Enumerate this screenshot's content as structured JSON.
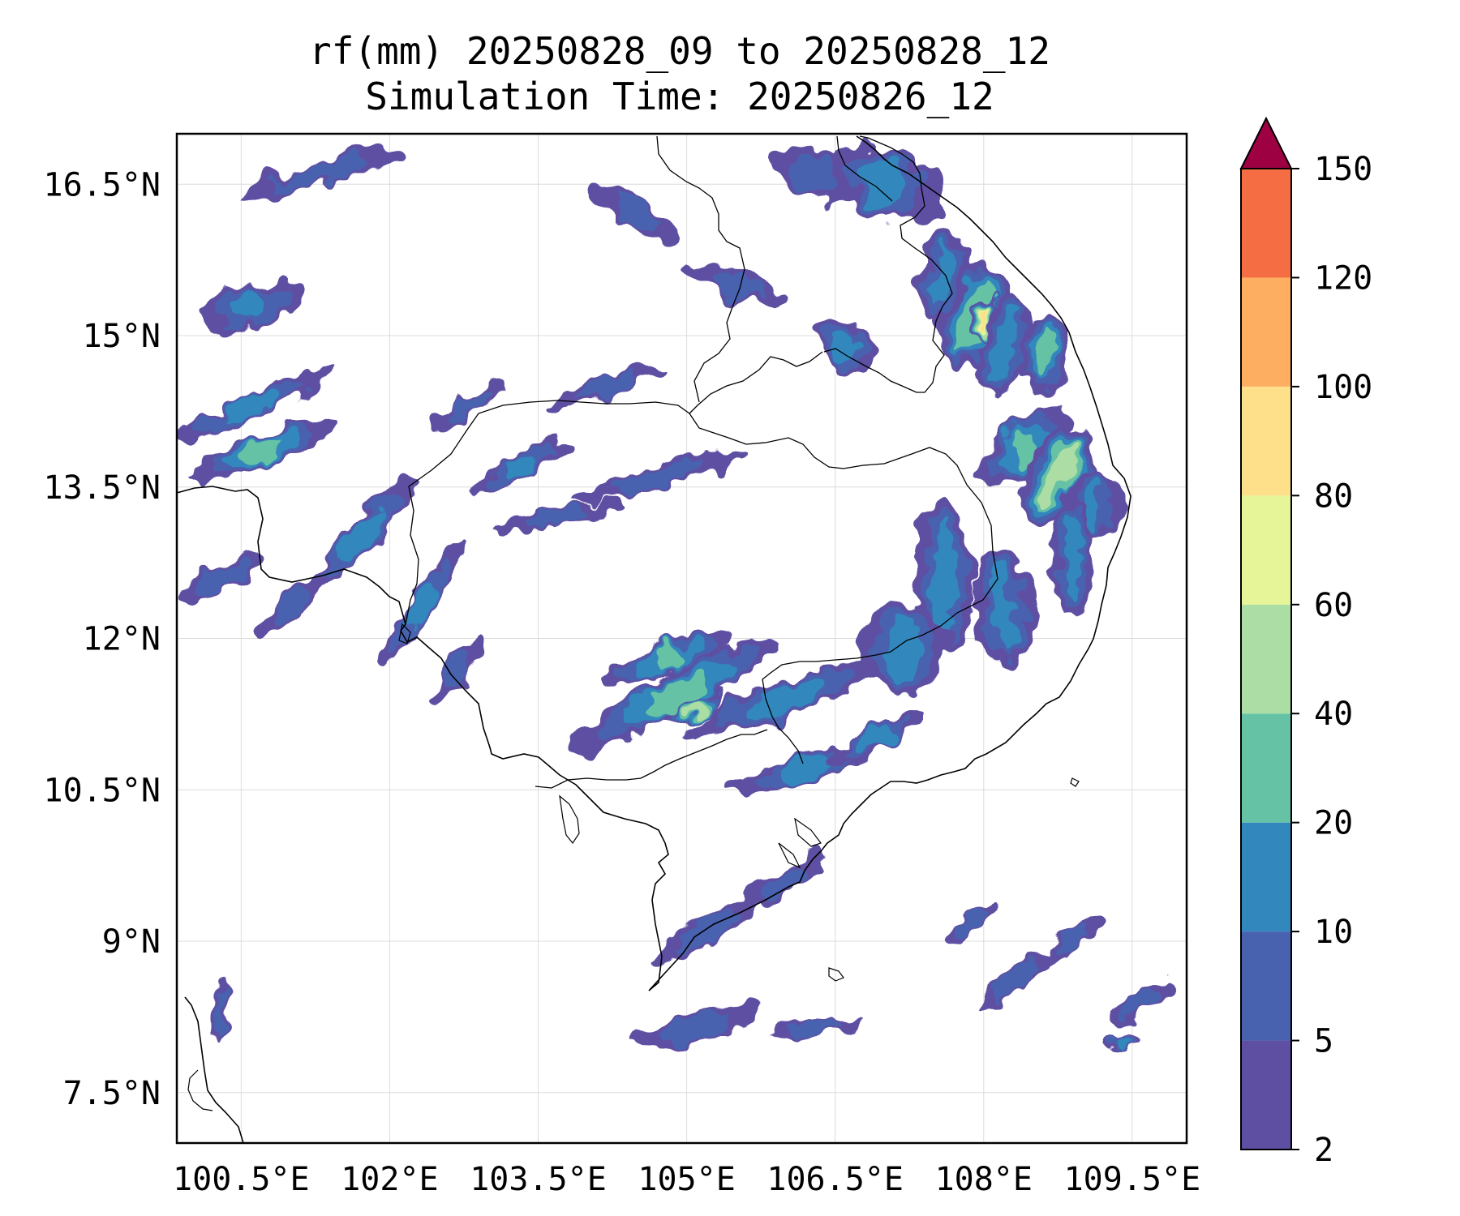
{
  "title_line1": "rf(mm) 20250828_09 to 20250828_12",
  "title_line2": "Simulation Time: 20250826_12",
  "chart_data": {
    "type": "heatmap",
    "variable": "rf(mm)",
    "period_start": "20250828_09",
    "period_end": "20250828_12",
    "simulation_time": "20250826_12",
    "lon_range": [
      99.85,
      110.05
    ],
    "lat_range": [
      7.0,
      17.0
    ],
    "grid": true,
    "x_ticks": [
      {
        "value": 100.5,
        "label": "100.5°E"
      },
      {
        "value": 102.0,
        "label": "102°E"
      },
      {
        "value": 103.5,
        "label": "103.5°E"
      },
      {
        "value": 105.0,
        "label": "105°E"
      },
      {
        "value": 106.5,
        "label": "106.5°E"
      },
      {
        "value": 108.0,
        "label": "108°E"
      },
      {
        "value": 109.5,
        "label": "109.5°E"
      }
    ],
    "y_ticks": [
      {
        "value": 16.5,
        "label": "16.5°N"
      },
      {
        "value": 15.0,
        "label": "15°N"
      },
      {
        "value": 13.5,
        "label": "13.5°N"
      },
      {
        "value": 12.0,
        "label": "12°N"
      },
      {
        "value": 10.5,
        "label": "10.5°N"
      },
      {
        "value": 9.0,
        "label": "9°N"
      },
      {
        "value": 7.5,
        "label": "7.5°N"
      }
    ],
    "colorbar": {
      "levels": [
        "2",
        "5",
        "10",
        "20",
        "40",
        "60",
        "80",
        "100",
        "120",
        "150"
      ],
      "colors": [
        "#5e4fa2",
        "#4862b0",
        "#3288bd",
        "#66c2a5",
        "#abdda4",
        "#e6f598",
        "#fee08b",
        "#fdae61",
        "#f46d43",
        "#d53e4f"
      ],
      "extend_color": "#9e0142",
      "extend": "max",
      "position": "right"
    },
    "rain_features": [
      {
        "lon": 100.7,
        "lat": 13.85,
        "rx": 0.75,
        "ry": 0.18,
        "rot": 20,
        "val": 28
      },
      {
        "lon": 100.6,
        "lat": 15.3,
        "rx": 0.55,
        "ry": 0.22,
        "rot": 15,
        "val": 12
      },
      {
        "lon": 100.6,
        "lat": 14.3,
        "rx": 0.9,
        "ry": 0.12,
        "rot": 25,
        "val": 14
      },
      {
        "lon": 101.7,
        "lat": 13.0,
        "rx": 0.9,
        "ry": 0.14,
        "rot": 48,
        "val": 11
      },
      {
        "lon": 102.3,
        "lat": 12.3,
        "rx": 0.75,
        "ry": 0.12,
        "rot": 55,
        "val": 14
      },
      {
        "lon": 101.0,
        "lat": 12.3,
        "rx": 0.5,
        "ry": 0.12,
        "rot": 40,
        "val": 6
      },
      {
        "lon": 102.7,
        "lat": 11.7,
        "rx": 0.4,
        "ry": 0.12,
        "rot": 60,
        "val": 9
      },
      {
        "lon": 100.3,
        "lat": 12.6,
        "rx": 0.55,
        "ry": 0.12,
        "rot": 25,
        "val": 6
      },
      {
        "lon": 104.9,
        "lat": 11.45,
        "rx": 1.2,
        "ry": 0.22,
        "rot": 28,
        "val": 26
      },
      {
        "lon": 104.8,
        "lat": 11.8,
        "rx": 0.7,
        "ry": 0.14,
        "rot": 18,
        "val": 22
      },
      {
        "lon": 105.1,
        "lat": 11.3,
        "rx": 0.35,
        "ry": 0.1,
        "rot": 25,
        "val": 48
      },
      {
        "lon": 106.0,
        "lat": 11.4,
        "rx": 1.1,
        "ry": 0.18,
        "rot": 20,
        "val": 14
      },
      {
        "lon": 106.2,
        "lat": 10.7,
        "rx": 0.8,
        "ry": 0.14,
        "rot": 15,
        "val": 11
      },
      {
        "lon": 106.9,
        "lat": 11.0,
        "rx": 0.55,
        "ry": 0.12,
        "rot": 30,
        "val": 12
      },
      {
        "lon": 107.9,
        "lat": 15.2,
        "rx": 0.35,
        "ry": 0.55,
        "rot": -20,
        "val": 35
      },
      {
        "lon": 108.0,
        "lat": 15.2,
        "rx": 0.12,
        "ry": 0.2,
        "rot": -20,
        "val": 90
      },
      {
        "lon": 107.6,
        "lat": 15.6,
        "rx": 0.25,
        "ry": 0.45,
        "rot": -10,
        "val": 16
      },
      {
        "lon": 108.6,
        "lat": 14.8,
        "rx": 0.25,
        "ry": 0.4,
        "rot": -10,
        "val": 22
      },
      {
        "lon": 108.2,
        "lat": 14.9,
        "rx": 0.25,
        "ry": 0.5,
        "rot": -15,
        "val": 18
      },
      {
        "lon": 108.4,
        "lat": 13.9,
        "rx": 0.55,
        "ry": 0.25,
        "rot": 38,
        "val": 20
      },
      {
        "lon": 108.75,
        "lat": 13.6,
        "rx": 0.32,
        "ry": 0.55,
        "rot": -28,
        "val": 50
      },
      {
        "lon": 109.1,
        "lat": 13.3,
        "rx": 0.3,
        "ry": 0.35,
        "rot": 0,
        "val": 14
      },
      {
        "lon": 108.9,
        "lat": 12.8,
        "rx": 0.2,
        "ry": 0.6,
        "rot": 0,
        "val": 13
      },
      {
        "lon": 108.2,
        "lat": 12.3,
        "rx": 0.3,
        "ry": 0.6,
        "rot": 5,
        "val": 11
      },
      {
        "lon": 107.6,
        "lat": 12.6,
        "rx": 0.3,
        "ry": 0.8,
        "rot": 0,
        "val": 14
      },
      {
        "lon": 107.2,
        "lat": 11.9,
        "rx": 0.45,
        "ry": 0.45,
        "rot": 0,
        "val": 12
      },
      {
        "lon": 106.6,
        "lat": 14.9,
        "rx": 0.35,
        "ry": 0.25,
        "rot": -30,
        "val": 12
      },
      {
        "lon": 107.0,
        "lat": 16.5,
        "rx": 0.6,
        "ry": 0.35,
        "rot": -20,
        "val": 12
      },
      {
        "lon": 106.3,
        "lat": 16.6,
        "rx": 0.45,
        "ry": 0.25,
        "rot": -25,
        "val": 8
      },
      {
        "lon": 105.5,
        "lat": 15.5,
        "rx": 0.55,
        "ry": 0.15,
        "rot": -20,
        "val": 6
      },
      {
        "lon": 104.5,
        "lat": 16.2,
        "rx": 0.5,
        "ry": 0.14,
        "rot": -30,
        "val": 5
      },
      {
        "lon": 104.7,
        "lat": 13.6,
        "rx": 0.9,
        "ry": 0.12,
        "rot": 15,
        "val": 8
      },
      {
        "lon": 103.3,
        "lat": 13.7,
        "rx": 0.55,
        "ry": 0.12,
        "rot": 30,
        "val": 16
      },
      {
        "lon": 103.7,
        "lat": 13.2,
        "rx": 0.7,
        "ry": 0.1,
        "rot": 10,
        "val": 8
      },
      {
        "lon": 104.2,
        "lat": 14.5,
        "rx": 0.6,
        "ry": 0.1,
        "rot": 20,
        "val": 6
      },
      {
        "lon": 101.3,
        "lat": 16.6,
        "rx": 0.9,
        "ry": 0.12,
        "rot": 15,
        "val": 6
      },
      {
        "lon": 102.8,
        "lat": 14.3,
        "rx": 0.45,
        "ry": 0.1,
        "rot": 30,
        "val": 6
      },
      {
        "lon": 106.0,
        "lat": 9.6,
        "rx": 0.45,
        "ry": 0.14,
        "rot": 35,
        "val": 6
      },
      {
        "lon": 105.2,
        "lat": 9.1,
        "rx": 0.6,
        "ry": 0.12,
        "rot": 30,
        "val": 7
      },
      {
        "lon": 105.1,
        "lat": 8.15,
        "rx": 0.7,
        "ry": 0.14,
        "rot": 15,
        "val": 7
      },
      {
        "lon": 106.3,
        "lat": 8.15,
        "rx": 0.5,
        "ry": 0.08,
        "rot": 5,
        "val": 6
      },
      {
        "lon": 108.3,
        "lat": 8.6,
        "rx": 0.5,
        "ry": 0.1,
        "rot": 35,
        "val": 7
      },
      {
        "lon": 109.6,
        "lat": 8.4,
        "rx": 0.4,
        "ry": 0.12,
        "rot": 30,
        "val": 8
      },
      {
        "lon": 109.4,
        "lat": 8.0,
        "rx": 0.2,
        "ry": 0.08,
        "rot": 20,
        "val": 12
      },
      {
        "lon": 108.9,
        "lat": 9.0,
        "rx": 0.35,
        "ry": 0.1,
        "rot": 40,
        "val": 6
      },
      {
        "lon": 100.3,
        "lat": 8.3,
        "rx": 0.08,
        "ry": 0.3,
        "rot": -10,
        "val": 6
      },
      {
        "lon": 107.9,
        "lat": 9.2,
        "rx": 0.3,
        "ry": 0.08,
        "rot": 40,
        "val": 5
      }
    ]
  }
}
